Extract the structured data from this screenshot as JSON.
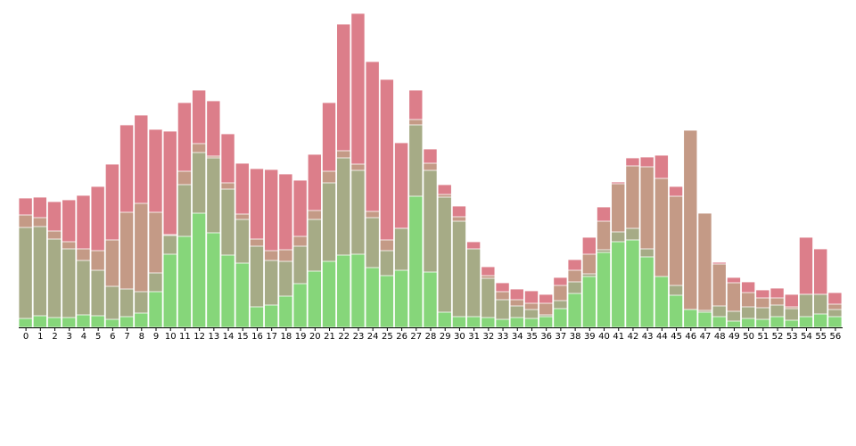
{
  "chart_data": {
    "type": "bar",
    "stacked": false,
    "overlay": true,
    "title": "",
    "xlabel": "",
    "ylabel": "",
    "categories": [
      "0",
      "1",
      "2",
      "3",
      "4",
      "5",
      "6",
      "7",
      "8",
      "9",
      "10",
      "11",
      "12",
      "13",
      "14",
      "15",
      "16",
      "17",
      "18",
      "19",
      "20",
      "21",
      "22",
      "23",
      "24",
      "25",
      "26",
      "27",
      "28",
      "29",
      "30",
      "31",
      "32",
      "33",
      "34",
      "35",
      "36",
      "37",
      "38",
      "39",
      "40",
      "41",
      "42",
      "43",
      "44",
      "45",
      "46",
      "47",
      "48",
      "49",
      "50",
      "51",
      "52",
      "53",
      "54",
      "55",
      "56"
    ],
    "ylim": [
      0,
      352
    ],
    "grid": false,
    "legend": "none",
    "series": [
      {
        "color": "#dc7e8a",
        "values": [
          145,
          146,
          141,
          143,
          148,
          158,
          183,
          227,
          238,
          222,
          220,
          252,
          266,
          254,
          217,
          184,
          178,
          177,
          172,
          165,
          194,
          252,
          340,
          352,
          298,
          278,
          207,
          266,
          200,
          160,
          136,
          96,
          68,
          50,
          43,
          41,
          37,
          56,
          76,
          101,
          135,
          163,
          190,
          191,
          193,
          158,
          220,
          127,
          73,
          56,
          51,
          42,
          44,
          37,
          101,
          88,
          39
        ]
      },
      {
        "color": "#c49a86",
        "values": [
          126,
          123,
          108,
          96,
          88,
          86,
          98,
          129,
          139,
          129,
          104,
          175,
          206,
          192,
          162,
          127,
          99,
          86,
          87,
          102,
          131,
          175,
          198,
          183,
          130,
          98,
          111,
          233,
          184,
          149,
          124,
          86,
          58,
          40,
          31,
          27,
          27,
          47,
          64,
          82,
          119,
          161,
          181,
          180,
          167,
          147,
          221,
          128,
          71,
          50,
          39,
          33,
          33,
          23,
          37,
          37,
          26
        ]
      },
      {
        "color": "#a6ab86",
        "values": [
          112,
          113,
          99,
          88,
          75,
          64,
          46,
          43,
          40,
          61,
          103,
          160,
          196,
          190,
          155,
          121,
          91,
          75,
          74,
          91,
          121,
          162,
          190,
          176,
          123,
          86,
          111,
          227,
          176,
          146,
          119,
          88,
          55,
          31,
          24,
          20,
          14,
          30,
          51,
          60,
          87,
          107,
          111,
          88,
          56,
          47,
          20,
          19,
          24,
          18,
          23,
          22,
          25,
          21,
          37,
          37,
          20
        ]
      },
      {
        "color": "#86d67a",
        "values": [
          10,
          13,
          11,
          11,
          14,
          13,
          9,
          12,
          16,
          40,
          82,
          102,
          128,
          106,
          81,
          72,
          23,
          25,
          35,
          49,
          63,
          74,
          81,
          82,
          67,
          58,
          64,
          147,
          62,
          17,
          12,
          12,
          11,
          9,
          11,
          10,
          12,
          21,
          38,
          57,
          84,
          96,
          98,
          79,
          57,
          36,
          20,
          17,
          12,
          7,
          10,
          9,
          12,
          8,
          12,
          15,
          12
        ]
      }
    ]
  }
}
